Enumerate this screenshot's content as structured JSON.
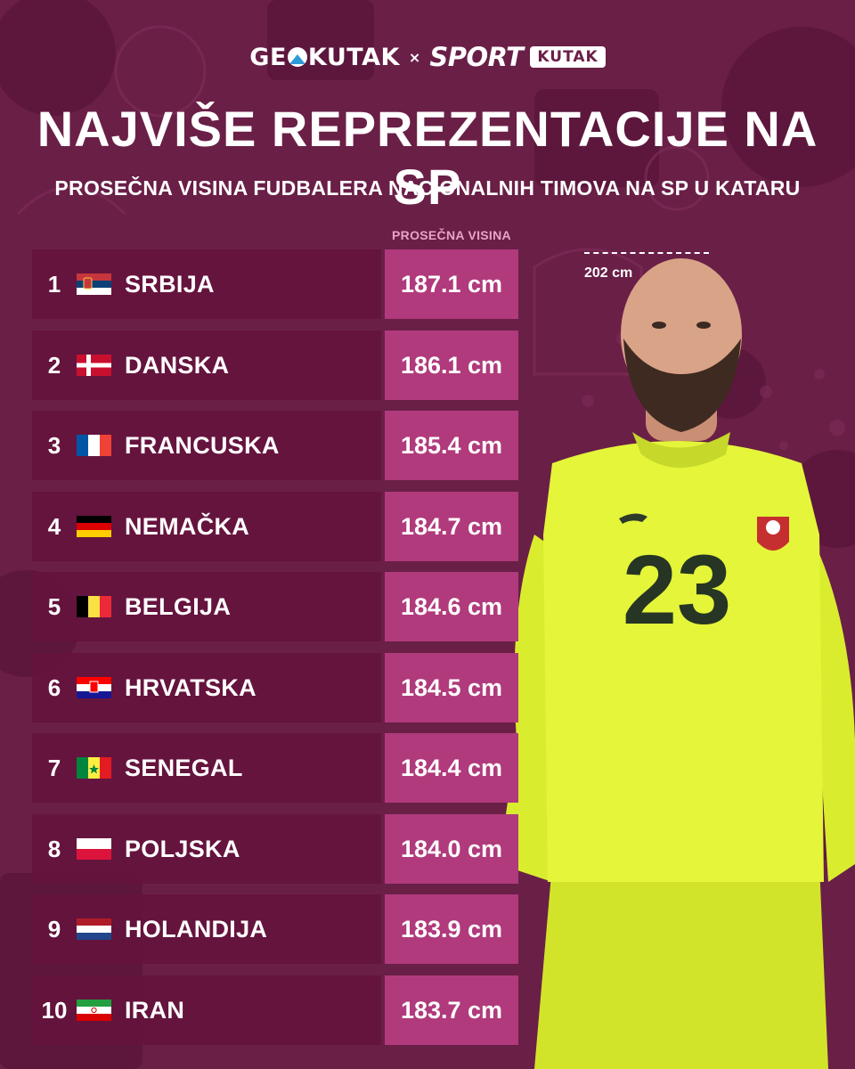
{
  "brand": {
    "geo_prefix": "GE",
    "geo_suffix": "KUTAK",
    "separator": "×",
    "sport": "SPORT",
    "kutak": "KUTAK"
  },
  "header": {
    "title": "NAJVIŠE REPREZENTACIJE NA SP",
    "subtitle": "PROSEČNA VISINA FUDBALERA NACIONALNIH TIMOVA NA SP U KATARU",
    "column_label": "PROSEČNA VISINA"
  },
  "player": {
    "height_label": "202 cm",
    "shirt_number": "23"
  },
  "colors": {
    "background": "#6a1f47",
    "row_dark": "#64123c",
    "value_cell": "#b03a7c",
    "column_label": "#e9a3c9",
    "jersey": "#e4f53a"
  },
  "chart_data": {
    "type": "table",
    "rows": [
      {
        "rank": "1",
        "country": "SRBIJA",
        "flag": "serbia-flag",
        "value": 187.1,
        "label": "187.1 cm"
      },
      {
        "rank": "2",
        "country": "DANSKA",
        "flag": "denmark-flag",
        "value": 186.1,
        "label": "186.1 cm"
      },
      {
        "rank": "3",
        "country": "FRANCUSKA",
        "flag": "france-flag",
        "value": 185.4,
        "label": "185.4 cm"
      },
      {
        "rank": "4",
        "country": "NEMAČKA",
        "flag": "germany-flag",
        "value": 184.7,
        "label": "184.7 cm"
      },
      {
        "rank": "5",
        "country": "BELGIJA",
        "flag": "belgium-flag",
        "value": 184.6,
        "label": "184.6 cm"
      },
      {
        "rank": "6",
        "country": "HRVATSKA",
        "flag": "croatia-flag",
        "value": 184.5,
        "label": "184.5 cm"
      },
      {
        "rank": "7",
        "country": "SENEGAL",
        "flag": "senegal-flag",
        "value": 184.4,
        "label": "184.4 cm"
      },
      {
        "rank": "8",
        "country": "POLJSKA",
        "flag": "poland-flag",
        "value": 184.0,
        "label": "184.0 cm"
      },
      {
        "rank": "9",
        "country": "HOLANDIJA",
        "flag": "netherlands-flag",
        "value": 183.9,
        "label": "183.9 cm"
      },
      {
        "rank": "10",
        "country": "IRAN",
        "flag": "iran-flag",
        "value": 183.7,
        "label": "183.7 cm"
      }
    ],
    "unit": "cm"
  }
}
